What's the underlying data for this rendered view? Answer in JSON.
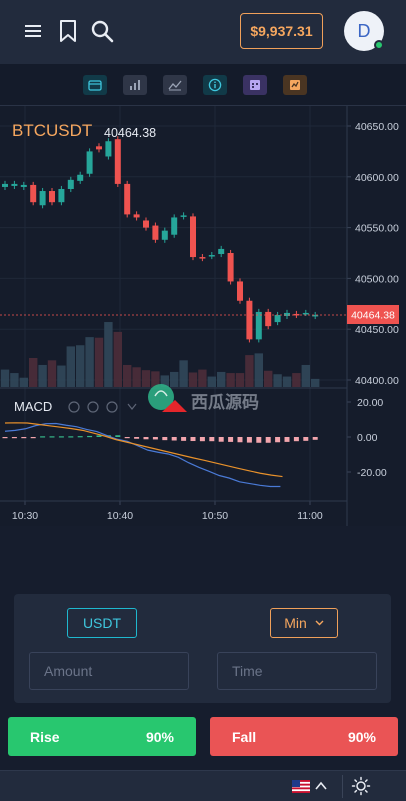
{
  "header": {
    "menu_icon": "hamburger-menu-icon",
    "bookmark_icon": "bookmark-icon",
    "search_icon": "search-icon",
    "balance": "$9,937.31",
    "avatar_initial": "D",
    "online_color": "#28c76f"
  },
  "toolbar": {
    "tools": [
      "wallet-icon",
      "bar-chart-icon",
      "line-chart-icon",
      "info-icon",
      "calendar-icon",
      "report-icon"
    ]
  },
  "chart": {
    "symbol": "BTCUSDT",
    "last_price": "40464.38",
    "price_tag": "40464.38",
    "indicator": "MACD",
    "watermark": "西瓜源码",
    "colors": {
      "up": "#26a69a",
      "down": "#ef5350",
      "symbol": "#f6a75f",
      "macd_line": "#4a7ad6",
      "signal_line": "#e8912b"
    }
  },
  "chart_data": {
    "type": "candlestick",
    "symbol": "BTCUSDT",
    "y_ticks": [
      "40650.00",
      "40600.00",
      "40550.00",
      "40500.00",
      "40450.00",
      "40400.00"
    ],
    "ylim": [
      40398,
      40663
    ],
    "x_ticks": [
      "10:30",
      "10:40",
      "10:50",
      "11:00"
    ],
    "macd_ticks": [
      "20.00",
      "0.00",
      "-20.00"
    ],
    "candles": [
      {
        "o": 40590,
        "c": 40593
      },
      {
        "o": 40591,
        "c": 40593
      },
      {
        "o": 40590,
        "c": 40592
      },
      {
        "o": 40592,
        "c": 40575
      },
      {
        "o": 40572,
        "c": 40586
      },
      {
        "o": 40586,
        "c": 40575
      },
      {
        "o": 40575,
        "c": 40588
      },
      {
        "o": 40588,
        "c": 40597
      },
      {
        "o": 40596,
        "c": 40602
      },
      {
        "o": 40603,
        "c": 40625
      },
      {
        "o": 40630,
        "c": 40627
      },
      {
        "o": 40620,
        "c": 40635
      },
      {
        "o": 40637,
        "c": 40593
      },
      {
        "o": 40593,
        "c": 40563
      },
      {
        "o": 40563,
        "c": 40560
      },
      {
        "o": 40557,
        "c": 40550
      },
      {
        "o": 40552,
        "c": 40538
      },
      {
        "o": 40538,
        "c": 40547
      },
      {
        "o": 40543,
        "c": 40560
      },
      {
        "o": 40561,
        "c": 40562
      },
      {
        "o": 40561,
        "c": 40521
      },
      {
        "o": 40521,
        "c": 40520
      },
      {
        "o": 40522,
        "c": 40523
      },
      {
        "o": 40524,
        "c": 40529
      },
      {
        "o": 40525,
        "c": 40497
      },
      {
        "o": 40497,
        "c": 40478
      },
      {
        "o": 40478,
        "c": 40440
      },
      {
        "o": 40440,
        "c": 40467
      },
      {
        "o": 40467,
        "c": 40453
      },
      {
        "o": 40457,
        "c": 40464
      },
      {
        "o": 40463,
        "c": 40466
      },
      {
        "o": 40465,
        "c": 40464
      },
      {
        "o": 40466,
        "c": 40466
      },
      {
        "o": 40463,
        "c": 40464
      }
    ],
    "volumes": [
      30,
      24,
      16,
      50,
      38,
      46,
      37,
      70,
      72,
      86,
      85,
      112,
      95,
      38,
      34,
      29,
      27,
      20,
      26,
      46,
      25,
      30,
      18,
      26,
      24,
      24,
      55,
      58,
      28,
      22,
      18,
      24,
      38,
      14
    ],
    "macd_hist": [
      -0.5,
      -0.5,
      -0.3,
      -0.3,
      0.4,
      0.4,
      0.4,
      0.4,
      0.5,
      0.6,
      0.9,
      1.0,
      1.0,
      -0.6,
      -1.0,
      -1.3,
      -1.4,
      -1.8,
      -2.0,
      -2.2,
      -2.3,
      -2.4,
      -2.4,
      -2.7,
      -2.8,
      -3.0,
      -3.2,
      -3.3,
      -3.3,
      -3.0,
      -2.8,
      -2.4,
      -2.2,
      -1.6
    ],
    "macd_line": [
      3.3,
      3.8,
      4.7,
      6.5,
      7.6,
      7.7,
      6.7,
      5.9,
      4.3,
      3.1,
      0.8,
      -1.3,
      -2.5,
      -5.0,
      -7.5,
      -8.7,
      -9.7,
      -11.6,
      -14.7,
      -17.3,
      -19.6,
      -22.0,
      -23.5,
      -25.6,
      -26.6,
      -27.6,
      -28.3,
      -28.3
    ],
    "signal_line": [
      8.0,
      8.1,
      8.0,
      7.2,
      6.4,
      5.6,
      4.8,
      3.8,
      2.2,
      0.5,
      -1.5,
      -3.0,
      -4.5,
      -6.0,
      -7.5,
      -9.0,
      -10.5,
      -12.0,
      -13.4,
      -14.9,
      -16.4,
      -17.9,
      -19.3,
      -20.7,
      -21.8,
      -22.6
    ]
  },
  "trade": {
    "currency": "USDT",
    "period": "Min",
    "amount_placeholder": "Amount",
    "time_placeholder": "Time",
    "rise_label": "Rise",
    "rise_pct": "90%",
    "fall_label": "Fall",
    "fall_pct": "90%"
  },
  "footer": {
    "language_flag": "us-flag-icon",
    "theme_icon": "sun-icon"
  }
}
